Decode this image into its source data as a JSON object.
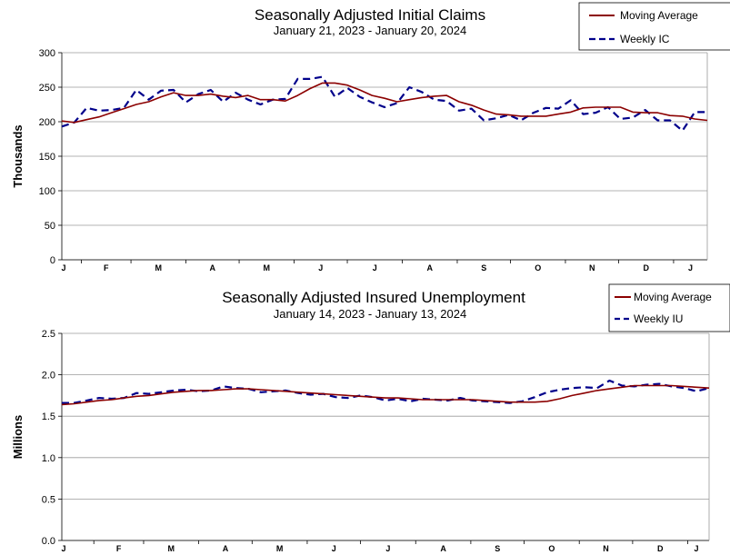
{
  "chart_data": [
    {
      "type": "line",
      "title": "Seasonally Adjusted Initial Claims",
      "subtitle": "January 21, 2023 - January 20, 2024",
      "ylabel": "Thousands",
      "ylim": [
        0,
        300
      ],
      "yticks": [
        "0",
        "50",
        "100",
        "150",
        "200",
        "250",
        "300"
      ],
      "grid": true,
      "legend_position": "top-right",
      "x_month_labels": [
        "J",
        "F",
        "M",
        "A",
        "M",
        "J",
        "J",
        "A",
        "S",
        "O",
        "N",
        "D",
        "J"
      ],
      "x": [
        "2023-01-21",
        "2023-01-28",
        "2023-02-04",
        "2023-02-11",
        "2023-02-18",
        "2023-02-25",
        "2023-03-04",
        "2023-03-11",
        "2023-03-18",
        "2023-03-25",
        "2023-04-01",
        "2023-04-08",
        "2023-04-15",
        "2023-04-22",
        "2023-04-29",
        "2023-05-06",
        "2023-05-13",
        "2023-05-20",
        "2023-05-27",
        "2023-06-03",
        "2023-06-10",
        "2023-06-17",
        "2023-06-24",
        "2023-07-01",
        "2023-07-08",
        "2023-07-15",
        "2023-07-22",
        "2023-07-29",
        "2023-08-05",
        "2023-08-12",
        "2023-08-19",
        "2023-08-26",
        "2023-09-02",
        "2023-09-09",
        "2023-09-16",
        "2023-09-23",
        "2023-09-30",
        "2023-10-07",
        "2023-10-14",
        "2023-10-21",
        "2023-10-28",
        "2023-11-04",
        "2023-11-11",
        "2023-11-18",
        "2023-11-25",
        "2023-12-02",
        "2023-12-09",
        "2023-12-16",
        "2023-12-23",
        "2023-12-30",
        "2024-01-06",
        "2024-01-13",
        "2024-01-20"
      ],
      "series": [
        {
          "name": "Moving Average",
          "color": "#8b0000",
          "style": "solid",
          "values": [
            201,
            199,
            203,
            207,
            213,
            219,
            225,
            229,
            236,
            242,
            238,
            238,
            240,
            237,
            235,
            238,
            232,
            232,
            230,
            238,
            248,
            256,
            256,
            253,
            246,
            238,
            234,
            229,
            232,
            235,
            237,
            238,
            229,
            224,
            217,
            211,
            210,
            208,
            208,
            208,
            211,
            214,
            220,
            221,
            221,
            221,
            214,
            213,
            213,
            209,
            208,
            204,
            202
          ]
        },
        {
          "name": "Weekly IC",
          "color": "#00008b",
          "style": "dashed",
          "values": [
            193,
            199,
            220,
            216,
            217,
            220,
            246,
            232,
            245,
            246,
            228,
            240,
            246,
            229,
            242,
            232,
            225,
            232,
            233,
            262,
            262,
            265,
            236,
            249,
            236,
            228,
            221,
            227,
            250,
            243,
            232,
            230,
            216,
            219,
            202,
            205,
            210,
            202,
            213,
            220,
            219,
            231,
            211,
            213,
            221,
            204,
            206,
            217,
            202,
            202,
            187,
            214,
            214
          ]
        }
      ]
    },
    {
      "type": "line",
      "title": "Seasonally Adjusted Insured Unemployment",
      "subtitle": "January 14, 2023 - January 13, 2024",
      "ylabel": "Millions",
      "ylim": [
        0,
        2.5
      ],
      "yticks": [
        "0.0",
        "0.5",
        "1.0",
        "1.5",
        "2.0",
        "2.5"
      ],
      "grid": true,
      "legend_position": "top-right",
      "x_month_labels": [
        "J",
        "F",
        "M",
        "A",
        "M",
        "J",
        "J",
        "A",
        "S",
        "O",
        "N",
        "D",
        "J"
      ],
      "x": [
        "2023-01-14",
        "2023-01-21",
        "2023-01-28",
        "2023-02-04",
        "2023-02-11",
        "2023-02-18",
        "2023-02-25",
        "2023-03-04",
        "2023-03-11",
        "2023-03-18",
        "2023-03-25",
        "2023-04-01",
        "2023-04-08",
        "2023-04-15",
        "2023-04-22",
        "2023-04-29",
        "2023-05-06",
        "2023-05-13",
        "2023-05-20",
        "2023-05-27",
        "2023-06-03",
        "2023-06-10",
        "2023-06-17",
        "2023-06-24",
        "2023-07-01",
        "2023-07-08",
        "2023-07-15",
        "2023-07-22",
        "2023-07-29",
        "2023-08-05",
        "2023-08-12",
        "2023-08-19",
        "2023-08-26",
        "2023-09-02",
        "2023-09-09",
        "2023-09-16",
        "2023-09-23",
        "2023-09-30",
        "2023-10-07",
        "2023-10-14",
        "2023-10-21",
        "2023-10-28",
        "2023-11-04",
        "2023-11-11",
        "2023-11-18",
        "2023-11-25",
        "2023-12-02",
        "2023-12-09",
        "2023-12-16",
        "2023-12-23",
        "2023-12-30",
        "2024-01-06",
        "2024-01-13"
      ],
      "series": [
        {
          "name": "Moving Average",
          "color": "#8b0000",
          "style": "solid",
          "values": [
            1.64,
            1.65,
            1.67,
            1.69,
            1.7,
            1.72,
            1.74,
            1.75,
            1.77,
            1.79,
            1.8,
            1.81,
            1.81,
            1.82,
            1.83,
            1.83,
            1.82,
            1.81,
            1.8,
            1.79,
            1.78,
            1.77,
            1.76,
            1.75,
            1.74,
            1.73,
            1.72,
            1.72,
            1.71,
            1.7,
            1.7,
            1.7,
            1.7,
            1.7,
            1.69,
            1.68,
            1.67,
            1.67,
            1.67,
            1.68,
            1.71,
            1.75,
            1.78,
            1.81,
            1.83,
            1.85,
            1.87,
            1.87,
            1.87,
            1.87,
            1.86,
            1.85,
            1.84
          ]
        },
        {
          "name": "Weekly IU",
          "color": "#00008b",
          "style": "dashed",
          "values": [
            1.66,
            1.66,
            1.69,
            1.72,
            1.71,
            1.72,
            1.78,
            1.77,
            1.79,
            1.81,
            1.82,
            1.8,
            1.81,
            1.86,
            1.84,
            1.83,
            1.79,
            1.8,
            1.81,
            1.78,
            1.76,
            1.77,
            1.73,
            1.72,
            1.75,
            1.73,
            1.69,
            1.71,
            1.68,
            1.71,
            1.7,
            1.69,
            1.72,
            1.69,
            1.68,
            1.67,
            1.66,
            1.68,
            1.73,
            1.79,
            1.82,
            1.84,
            1.85,
            1.84,
            1.93,
            1.87,
            1.86,
            1.88,
            1.89,
            1.86,
            1.84,
            1.8,
            1.84
          ]
        }
      ]
    }
  ]
}
